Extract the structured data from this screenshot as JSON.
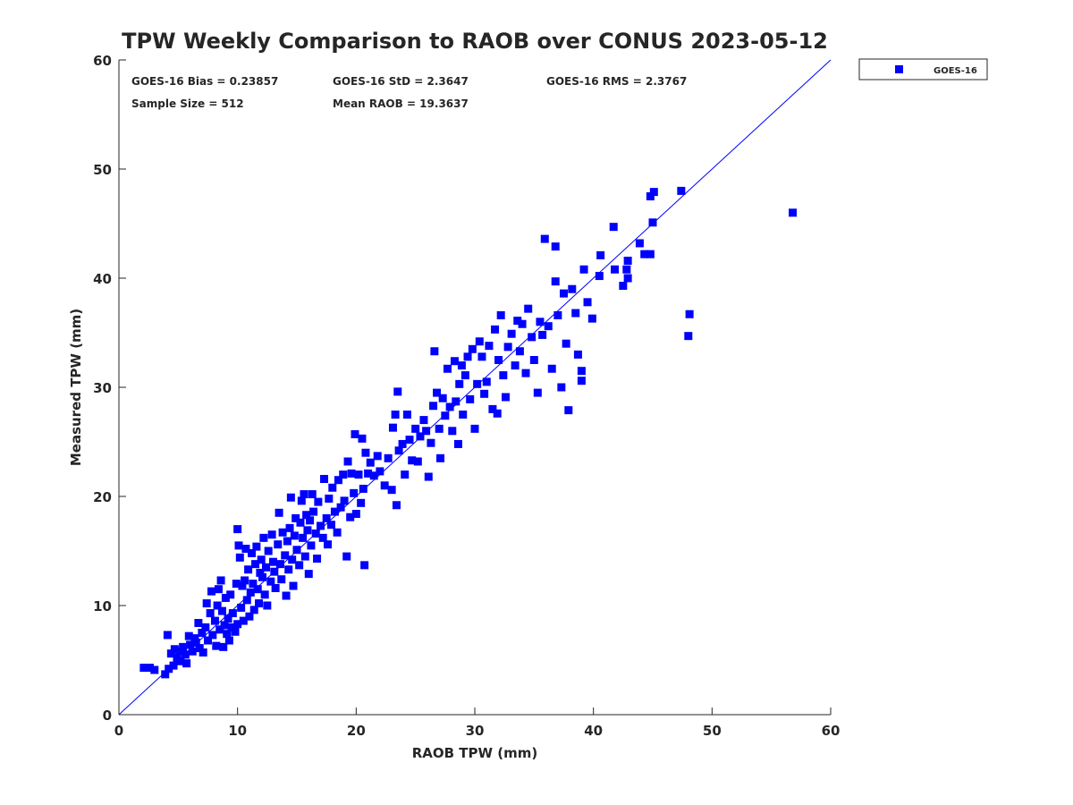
{
  "chart_data": {
    "type": "scatter",
    "title": "TPW Weekly Comparison to RAOB over CONUS 2023-05-12",
    "xlabel": "RAOB TPW (mm)",
    "ylabel": "Measured TPW (mm)",
    "xlim": [
      0,
      60
    ],
    "ylim": [
      0,
      60
    ],
    "xticks": [
      "0",
      "10",
      "20",
      "30",
      "40",
      "50",
      "60"
    ],
    "yticks": [
      "0",
      "10",
      "20",
      "30",
      "40",
      "50",
      "60"
    ],
    "grid": false,
    "legend": {
      "placement": "outside-top-right",
      "entries": [
        "GOES-16"
      ]
    },
    "reference_line": {
      "label": "1:1",
      "from": [
        0,
        0
      ],
      "to": [
        60,
        60
      ],
      "color": "#0000ff"
    },
    "stats": {
      "bias": "GOES-16 Bias = 0.23857",
      "std": "GOES-16 StD = 2.3647",
      "rms": "GOES-16 RMS = 2.3767",
      "sample": "Sample Size = 512",
      "mean": "Mean RAOB = 19.3637"
    },
    "series": [
      {
        "name": "GOES-16",
        "color": "#0000ff",
        "marker": "square",
        "points": [
          [
            2.1,
            4.3
          ],
          [
            2.6,
            4.3
          ],
          [
            3.0,
            4.1
          ],
          [
            3.9,
            3.7
          ],
          [
            4.1,
            7.3
          ],
          [
            4.2,
            4.2
          ],
          [
            4.4,
            5.6
          ],
          [
            4.6,
            4.5
          ],
          [
            4.7,
            6.0
          ],
          [
            4.9,
            5.2
          ],
          [
            5.1,
            5.8
          ],
          [
            5.2,
            4.9
          ],
          [
            5.4,
            6.2
          ],
          [
            5.6,
            5.5
          ],
          [
            5.7,
            4.7
          ],
          [
            5.9,
            7.2
          ],
          [
            6.0,
            6.4
          ],
          [
            6.2,
            5.8
          ],
          [
            6.4,
            7.0
          ],
          [
            6.5,
            6.6
          ],
          [
            6.7,
            8.4
          ],
          [
            6.8,
            6.1
          ],
          [
            7.0,
            7.5
          ],
          [
            7.1,
            5.7
          ],
          [
            7.3,
            8.0
          ],
          [
            7.4,
            10.2
          ],
          [
            7.5,
            6.8
          ],
          [
            7.7,
            9.3
          ],
          [
            7.8,
            11.3
          ],
          [
            7.9,
            7.3
          ],
          [
            8.1,
            8.6
          ],
          [
            8.2,
            6.3
          ],
          [
            8.3,
            10.0
          ],
          [
            8.4,
            11.5
          ],
          [
            8.5,
            7.8
          ],
          [
            8.6,
            12.3
          ],
          [
            8.7,
            9.5
          ],
          [
            8.8,
            6.2
          ],
          [
            8.9,
            8.2
          ],
          [
            9.0,
            10.7
          ],
          [
            9.1,
            7.4
          ],
          [
            9.2,
            8.8
          ],
          [
            9.3,
            6.8
          ],
          [
            9.4,
            11.0
          ],
          [
            9.5,
            8.0
          ],
          [
            9.6,
            9.3
          ],
          [
            9.8,
            7.6
          ],
          [
            9.9,
            12.0
          ],
          [
            10.0,
            17.0
          ],
          [
            10.0,
            8.3
          ],
          [
            10.1,
            15.5
          ],
          [
            10.2,
            14.4
          ],
          [
            10.3,
            9.8
          ],
          [
            10.4,
            11.8
          ],
          [
            10.5,
            8.6
          ],
          [
            10.6,
            12.3
          ],
          [
            10.7,
            15.2
          ],
          [
            10.8,
            10.5
          ],
          [
            10.9,
            13.3
          ],
          [
            11.0,
            9.0
          ],
          [
            11.1,
            11.2
          ],
          [
            11.2,
            14.8
          ],
          [
            11.3,
            12.0
          ],
          [
            11.4,
            9.6
          ],
          [
            11.5,
            13.8
          ],
          [
            11.6,
            15.4
          ],
          [
            11.7,
            11.5
          ],
          [
            11.8,
            10.2
          ],
          [
            11.9,
            13.0
          ],
          [
            12.0,
            14.2
          ],
          [
            12.1,
            12.6
          ],
          [
            12.2,
            16.2
          ],
          [
            12.3,
            11.0
          ],
          [
            12.4,
            13.5
          ],
          [
            12.5,
            10.0
          ],
          [
            12.6,
            15.0
          ],
          [
            12.8,
            12.2
          ],
          [
            12.9,
            16.5
          ],
          [
            13.0,
            14.0
          ],
          [
            13.1,
            13.1
          ],
          [
            13.2,
            11.6
          ],
          [
            13.4,
            15.6
          ],
          [
            13.5,
            18.5
          ],
          [
            13.6,
            13.8
          ],
          [
            13.7,
            12.4
          ],
          [
            13.8,
            16.7
          ],
          [
            14.0,
            14.6
          ],
          [
            14.1,
            10.9
          ],
          [
            14.2,
            15.9
          ],
          [
            14.3,
            13.3
          ],
          [
            14.4,
            17.1
          ],
          [
            14.5,
            19.9
          ],
          [
            14.6,
            14.2
          ],
          [
            14.7,
            11.8
          ],
          [
            14.8,
            16.4
          ],
          [
            14.9,
            18.0
          ],
          [
            15.0,
            15.1
          ],
          [
            15.2,
            13.7
          ],
          [
            15.3,
            17.6
          ],
          [
            15.4,
            19.6
          ],
          [
            15.5,
            16.2
          ],
          [
            15.6,
            20.2
          ],
          [
            15.7,
            14.5
          ],
          [
            15.8,
            18.3
          ],
          [
            15.9,
            16.9
          ],
          [
            16.0,
            12.9
          ],
          [
            16.1,
            17.8
          ],
          [
            16.2,
            15.5
          ],
          [
            16.3,
            20.2
          ],
          [
            16.4,
            18.6
          ],
          [
            16.6,
            16.6
          ],
          [
            16.7,
            14.3
          ],
          [
            16.8,
            19.5
          ],
          [
            17.0,
            17.3
          ],
          [
            17.2,
            16.2
          ],
          [
            17.3,
            21.6
          ],
          [
            17.5,
            18.0
          ],
          [
            17.6,
            15.6
          ],
          [
            17.7,
            19.8
          ],
          [
            17.9,
            17.4
          ],
          [
            18.0,
            20.8
          ],
          [
            18.2,
            18.6
          ],
          [
            18.4,
            16.7
          ],
          [
            18.5,
            21.5
          ],
          [
            18.7,
            19.0
          ],
          [
            18.9,
            22.0
          ],
          [
            19.0,
            19.6
          ],
          [
            19.2,
            14.5
          ],
          [
            19.3,
            23.2
          ],
          [
            19.5,
            18.1
          ],
          [
            19.6,
            22.1
          ],
          [
            19.8,
            20.3
          ],
          [
            19.9,
            25.7
          ],
          [
            20.0,
            18.4
          ],
          [
            20.2,
            22.0
          ],
          [
            20.4,
            19.4
          ],
          [
            20.5,
            25.3
          ],
          [
            20.6,
            20.7
          ],
          [
            20.7,
            13.7
          ],
          [
            20.8,
            24.0
          ],
          [
            21.0,
            22.1
          ],
          [
            21.2,
            23.1
          ],
          [
            21.5,
            21.9
          ],
          [
            21.8,
            23.7
          ],
          [
            22.0,
            22.3
          ],
          [
            22.4,
            21.0
          ],
          [
            22.7,
            23.5
          ],
          [
            23.0,
            20.6
          ],
          [
            23.1,
            26.3
          ],
          [
            23.3,
            27.5
          ],
          [
            23.5,
            29.6
          ],
          [
            23.4,
            19.2
          ],
          [
            23.6,
            24.2
          ],
          [
            23.9,
            24.8
          ],
          [
            24.1,
            22.0
          ],
          [
            24.3,
            27.5
          ],
          [
            24.5,
            25.2
          ],
          [
            24.7,
            23.3
          ],
          [
            25.0,
            26.2
          ],
          [
            25.2,
            23.2
          ],
          [
            25.4,
            25.5
          ],
          [
            25.7,
            27.0
          ],
          [
            25.9,
            26.0
          ],
          [
            26.1,
            21.8
          ],
          [
            26.3,
            24.9
          ],
          [
            26.5,
            28.3
          ],
          [
            26.6,
            33.3
          ],
          [
            26.8,
            29.5
          ],
          [
            27.0,
            26.2
          ],
          [
            27.1,
            23.5
          ],
          [
            27.3,
            29.0
          ],
          [
            27.5,
            27.4
          ],
          [
            27.7,
            31.7
          ],
          [
            27.9,
            28.2
          ],
          [
            28.1,
            26.0
          ],
          [
            28.3,
            32.4
          ],
          [
            28.4,
            28.7
          ],
          [
            28.6,
            24.8
          ],
          [
            28.7,
            30.3
          ],
          [
            28.9,
            32.0
          ],
          [
            29.0,
            27.5
          ],
          [
            29.2,
            31.1
          ],
          [
            29.4,
            32.8
          ],
          [
            29.6,
            28.9
          ],
          [
            29.8,
            33.5
          ],
          [
            30.0,
            26.2
          ],
          [
            30.2,
            30.3
          ],
          [
            30.4,
            34.2
          ],
          [
            30.6,
            32.8
          ],
          [
            30.8,
            29.4
          ],
          [
            31.0,
            30.5
          ],
          [
            31.2,
            33.8
          ],
          [
            31.5,
            28.0
          ],
          [
            31.7,
            35.3
          ],
          [
            31.9,
            27.6
          ],
          [
            32.0,
            32.5
          ],
          [
            32.2,
            36.6
          ],
          [
            32.4,
            31.1
          ],
          [
            32.6,
            29.1
          ],
          [
            32.8,
            33.7
          ],
          [
            33.1,
            34.9
          ],
          [
            33.4,
            32.0
          ],
          [
            33.6,
            36.1
          ],
          [
            33.8,
            33.3
          ],
          [
            34.0,
            35.8
          ],
          [
            34.3,
            31.3
          ],
          [
            34.5,
            37.2
          ],
          [
            34.8,
            34.6
          ],
          [
            35.0,
            32.5
          ],
          [
            35.3,
            29.5
          ],
          [
            35.5,
            36.0
          ],
          [
            35.7,
            34.8
          ],
          [
            35.9,
            43.6
          ],
          [
            36.2,
            35.6
          ],
          [
            36.5,
            31.7
          ],
          [
            36.8,
            42.9
          ],
          [
            36.8,
            39.7
          ],
          [
            37.0,
            36.6
          ],
          [
            37.3,
            30.0
          ],
          [
            37.5,
            38.6
          ],
          [
            37.7,
            34.0
          ],
          [
            37.9,
            27.9
          ],
          [
            38.2,
            39.0
          ],
          [
            38.5,
            36.8
          ],
          [
            38.7,
            33.0
          ],
          [
            39.0,
            31.5
          ],
          [
            39.0,
            30.6
          ],
          [
            39.2,
            40.8
          ],
          [
            39.5,
            37.8
          ],
          [
            39.9,
            36.3
          ],
          [
            40.5,
            40.2
          ],
          [
            40.6,
            42.1
          ],
          [
            41.7,
            44.7
          ],
          [
            41.8,
            40.8
          ],
          [
            42.5,
            39.3
          ],
          [
            42.8,
            40.8
          ],
          [
            42.9,
            40.0
          ],
          [
            42.9,
            41.6
          ],
          [
            43.9,
            43.2
          ],
          [
            44.3,
            42.2
          ],
          [
            44.8,
            42.2
          ],
          [
            44.8,
            47.5
          ],
          [
            45.0,
            45.1
          ],
          [
            45.1,
            47.9
          ],
          [
            47.4,
            48.0
          ],
          [
            48.0,
            34.7
          ],
          [
            48.1,
            36.7
          ],
          [
            56.8,
            46.0
          ]
        ]
      }
    ]
  }
}
